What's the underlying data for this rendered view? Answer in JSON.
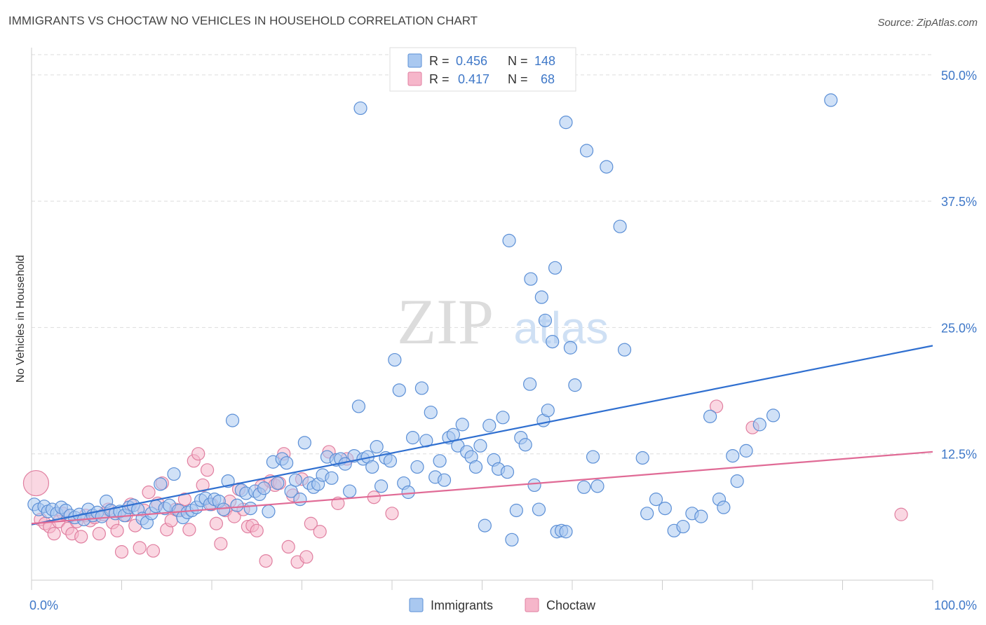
{
  "header": {
    "title": "IMMIGRANTS VS CHOCTAW NO VEHICLES IN HOUSEHOLD CORRELATION CHART",
    "source": "Source: ZipAtlas.com"
  },
  "colors": {
    "immigrants_fill": "#a9c8f0",
    "immigrants_stroke": "#5b8fd6",
    "immigrants_line": "#2f6fd0",
    "choctaw_fill": "#f6b6ca",
    "choctaw_stroke": "#e07fa0",
    "choctaw_line": "#e06b96",
    "tick_text": "#3f78c8",
    "grid": "#dddddd"
  },
  "watermark": {
    "zip": "ZIP",
    "atlas": "atlas"
  },
  "chart_data": {
    "type": "scatter",
    "xlabel": "",
    "ylabel": "No Vehicles in Household",
    "xlim": [
      0,
      100
    ],
    "ylim": [
      0,
      52
    ],
    "x_tick_labels": [
      "0.0%",
      "100.0%"
    ],
    "y_ticks": [
      12.5,
      25.0,
      37.5,
      50.0
    ],
    "y_tick_labels": [
      "12.5%",
      "25.0%",
      "37.5%",
      "50.0%"
    ],
    "grid": true,
    "legend_placement": "top-center",
    "stats": [
      {
        "r_label": "R =",
        "r_value": "0.456",
        "n_label": "N =",
        "n_value": "148"
      },
      {
        "r_label": "R =",
        "r_value": "0.417",
        "n_label": "N =",
        "n_value": "68"
      }
    ],
    "series": [
      {
        "name": "Immigrants",
        "trend": {
          "x": [
            0,
            100
          ],
          "y": [
            5.5,
            23.2
          ]
        },
        "points": [
          [
            0.3,
            7.5
          ],
          [
            0.8,
            7.0
          ],
          [
            1.4,
            7.3
          ],
          [
            1.8,
            6.8
          ],
          [
            2.3,
            7.0
          ],
          [
            2.8,
            6.6
          ],
          [
            3.3,
            7.2
          ],
          [
            3.8,
            6.9
          ],
          [
            4.3,
            6.4
          ],
          [
            4.8,
            6.2
          ],
          [
            5.3,
            6.5
          ],
          [
            5.8,
            6.0
          ],
          [
            6.3,
            7.0
          ],
          [
            6.8,
            6.4
          ],
          [
            7.3,
            6.7
          ],
          [
            7.8,
            6.3
          ],
          [
            8.3,
            7.8
          ],
          [
            8.8,
            6.9
          ],
          [
            9.3,
            6.6
          ],
          [
            9.8,
            6.8
          ],
          [
            10.3,
            6.4
          ],
          [
            10.8,
            7.2
          ],
          [
            11.3,
            7.4
          ],
          [
            11.8,
            7.0
          ],
          [
            12.3,
            6.1
          ],
          [
            12.8,
            5.7
          ],
          [
            13.3,
            6.6
          ],
          [
            13.8,
            7.3
          ],
          [
            14.3,
            9.5
          ],
          [
            14.8,
            7.1
          ],
          [
            15.3,
            7.4
          ],
          [
            15.8,
            10.5
          ],
          [
            16.3,
            6.9
          ],
          [
            16.8,
            6.2
          ],
          [
            17.3,
            6.7
          ],
          [
            17.8,
            6.9
          ],
          [
            18.3,
            7.2
          ],
          [
            18.8,
            7.9
          ],
          [
            19.3,
            8.1
          ],
          [
            19.8,
            7.5
          ],
          [
            20.3,
            8.0
          ],
          [
            20.8,
            7.8
          ],
          [
            21.3,
            7.0
          ],
          [
            21.8,
            9.8
          ],
          [
            22.3,
            15.8
          ],
          [
            22.8,
            7.4
          ],
          [
            23.3,
            8.9
          ],
          [
            23.8,
            8.6
          ],
          [
            24.3,
            7.1
          ],
          [
            24.8,
            8.8
          ],
          [
            25.3,
            8.5
          ],
          [
            25.8,
            9.1
          ],
          [
            26.3,
            6.8
          ],
          [
            26.8,
            11.7
          ],
          [
            27.3,
            9.6
          ],
          [
            27.8,
            12.0
          ],
          [
            28.3,
            11.6
          ],
          [
            28.8,
            8.8
          ],
          [
            29.3,
            9.9
          ],
          [
            29.8,
            8.0
          ],
          [
            30.3,
            13.6
          ],
          [
            30.8,
            9.6
          ],
          [
            31.3,
            9.2
          ],
          [
            31.8,
            9.5
          ],
          [
            32.3,
            10.4
          ],
          [
            32.8,
            12.2
          ],
          [
            33.3,
            10.1
          ],
          [
            33.8,
            11.9
          ],
          [
            34.3,
            12.0
          ],
          [
            34.8,
            11.5
          ],
          [
            35.3,
            8.8
          ],
          [
            35.8,
            12.3
          ],
          [
            36.3,
            17.2
          ],
          [
            36.8,
            12.0
          ],
          [
            37.3,
            12.2
          ],
          [
            37.8,
            11.2
          ],
          [
            38.3,
            13.2
          ],
          [
            38.8,
            9.3
          ],
          [
            39.3,
            12.1
          ],
          [
            39.8,
            11.8
          ],
          [
            40.3,
            21.8
          ],
          [
            40.8,
            18.8
          ],
          [
            41.3,
            9.6
          ],
          [
            41.8,
            8.7
          ],
          [
            42.3,
            14.1
          ],
          [
            42.8,
            11.2
          ],
          [
            43.3,
            19.0
          ],
          [
            43.8,
            13.8
          ],
          [
            44.3,
            16.6
          ],
          [
            44.8,
            10.2
          ],
          [
            45.3,
            11.8
          ],
          [
            45.8,
            9.9
          ],
          [
            46.3,
            14.1
          ],
          [
            46.8,
            14.4
          ],
          [
            47.3,
            13.3
          ],
          [
            47.8,
            15.4
          ],
          [
            48.3,
            12.7
          ],
          [
            48.8,
            12.2
          ],
          [
            49.3,
            11.2
          ],
          [
            49.8,
            13.3
          ],
          [
            50.3,
            5.4
          ],
          [
            50.8,
            15.3
          ],
          [
            51.3,
            11.9
          ],
          [
            51.8,
            11.0
          ],
          [
            52.3,
            16.1
          ],
          [
            52.8,
            10.7
          ],
          [
            53.3,
            4.0
          ],
          [
            53.8,
            6.9
          ],
          [
            54.3,
            14.1
          ],
          [
            54.8,
            13.4
          ],
          [
            55.3,
            19.4
          ],
          [
            55.8,
            9.4
          ],
          [
            56.3,
            7.0
          ],
          [
            56.8,
            15.8
          ],
          [
            57.3,
            16.8
          ],
          [
            57.8,
            23.6
          ],
          [
            58.3,
            4.8
          ],
          [
            58.8,
            4.9
          ],
          [
            59.3,
            4.8
          ],
          [
            59.8,
            23.0
          ],
          [
            36.5,
            46.7
          ],
          [
            60.3,
            19.3
          ],
          [
            61.3,
            9.2
          ],
          [
            62.3,
            12.2
          ],
          [
            62.8,
            9.3
          ],
          [
            63.8,
            40.9
          ],
          [
            65.8,
            22.8
          ],
          [
            67.8,
            12.1
          ],
          [
            68.3,
            6.6
          ],
          [
            69.3,
            8.0
          ],
          [
            70.3,
            7.1
          ],
          [
            71.3,
            4.9
          ],
          [
            72.3,
            5.3
          ],
          [
            73.3,
            6.6
          ],
          [
            74.3,
            6.3
          ],
          [
            75.3,
            16.2
          ],
          [
            76.3,
            8.0
          ],
          [
            76.8,
            7.2
          ],
          [
            77.8,
            12.3
          ],
          [
            78.3,
            9.8
          ],
          [
            79.3,
            12.8
          ],
          [
            80.8,
            15.4
          ],
          [
            82.3,
            16.3
          ],
          [
            88.7,
            47.5
          ],
          [
            53.0,
            33.6
          ],
          [
            55.4,
            29.8
          ],
          [
            56.6,
            28.0
          ],
          [
            57.0,
            25.7
          ],
          [
            58.1,
            30.9
          ],
          [
            59.3,
            45.3
          ],
          [
            61.6,
            42.5
          ],
          [
            65.3,
            35.0
          ]
        ]
      },
      {
        "name": "Choctaw",
        "trend": {
          "x": [
            0,
            100
          ],
          "y": [
            5.6,
            12.7
          ]
        },
        "points": [
          [
            0.5,
            9.6
          ],
          [
            1.0,
            6.0
          ],
          [
            1.5,
            5.6
          ],
          [
            2.0,
            5.3
          ],
          [
            2.5,
            4.6
          ],
          [
            3.0,
            5.8
          ],
          [
            3.5,
            6.6
          ],
          [
            4.0,
            5.1
          ],
          [
            4.5,
            4.6
          ],
          [
            5.0,
            5.8
          ],
          [
            5.5,
            4.3
          ],
          [
            6.0,
            6.4
          ],
          [
            6.5,
            5.9
          ],
          [
            7.0,
            6.2
          ],
          [
            7.5,
            4.6
          ],
          [
            8.0,
            6.5
          ],
          [
            8.5,
            7.0
          ],
          [
            9.0,
            5.7
          ],
          [
            9.5,
            4.9
          ],
          [
            10.0,
            2.8
          ],
          [
            10.5,
            6.4
          ],
          [
            11.0,
            7.5
          ],
          [
            11.5,
            5.4
          ],
          [
            12.0,
            3.2
          ],
          [
            12.5,
            6.9
          ],
          [
            13.0,
            8.7
          ],
          [
            13.5,
            2.9
          ],
          [
            14.0,
            7.6
          ],
          [
            14.5,
            9.6
          ],
          [
            15.0,
            5.0
          ],
          [
            15.5,
            5.9
          ],
          [
            16.0,
            7.0
          ],
          [
            16.5,
            6.9
          ],
          [
            17.0,
            8.0
          ],
          [
            17.5,
            5.0
          ],
          [
            18.0,
            11.8
          ],
          [
            18.5,
            12.5
          ],
          [
            19.0,
            9.4
          ],
          [
            19.5,
            10.9
          ],
          [
            20.0,
            7.5
          ],
          [
            20.5,
            5.6
          ],
          [
            21.0,
            3.6
          ],
          [
            21.5,
            6.9
          ],
          [
            22.0,
            7.8
          ],
          [
            22.5,
            6.3
          ],
          [
            23.0,
            9.0
          ],
          [
            23.5,
            7.0
          ],
          [
            24.0,
            5.3
          ],
          [
            24.5,
            5.4
          ],
          [
            25.0,
            4.9
          ],
          [
            25.5,
            9.3
          ],
          [
            26.0,
            1.9
          ],
          [
            26.5,
            9.8
          ],
          [
            27.0,
            9.4
          ],
          [
            27.5,
            9.6
          ],
          [
            28.0,
            12.5
          ],
          [
            28.5,
            3.3
          ],
          [
            29.0,
            8.4
          ],
          [
            29.5,
            1.8
          ],
          [
            30.0,
            10.0
          ],
          [
            30.5,
            2.3
          ],
          [
            31.0,
            5.6
          ],
          [
            32.0,
            4.8
          ],
          [
            33.0,
            12.7
          ],
          [
            34.0,
            7.6
          ],
          [
            35.0,
            12.0
          ],
          [
            38.0,
            8.2
          ],
          [
            40.0,
            6.6
          ],
          [
            76.0,
            17.2
          ],
          [
            80.0,
            15.1
          ],
          [
            96.5,
            6.5
          ]
        ]
      }
    ]
  }
}
